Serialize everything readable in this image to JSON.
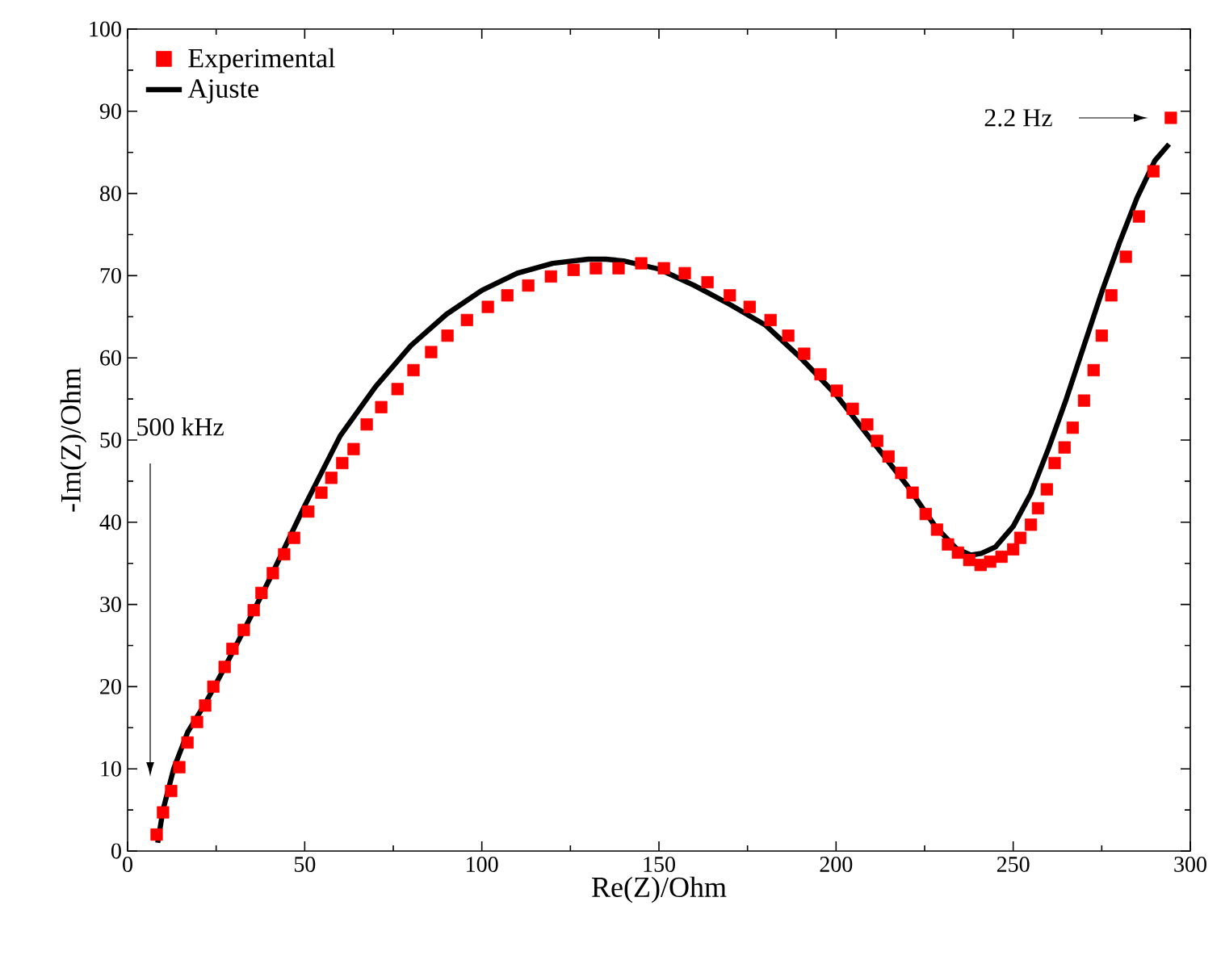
{
  "chart_data": {
    "type": "scatter",
    "xlabel": "Re(Z)/Ohm",
    "ylabel": "-Im(Z)/Ohm",
    "xlim": [
      0,
      300
    ],
    "ylim": [
      0,
      100
    ],
    "xticks": [
      0,
      50,
      100,
      150,
      200,
      250,
      300
    ],
    "yticks": [
      0,
      10,
      20,
      30,
      40,
      50,
      60,
      70,
      80,
      90,
      100
    ],
    "grid": false,
    "legend": "top left",
    "series": [
      {
        "name": "Experimental",
        "marker": "square",
        "color": "#ff0000",
        "x": [
          8.2,
          10,
          12.3,
          14.6,
          16.9,
          19.6,
          21.9,
          24.2,
          27.4,
          29.6,
          32.8,
          35.6,
          37.8,
          41,
          44.2,
          47,
          51,
          54.7,
          57.5,
          60.6,
          63.8,
          67.5,
          71.6,
          76.2,
          80.7,
          85.7,
          90.3,
          95.8,
          101.7,
          107.2,
          113.1,
          119.5,
          125.9,
          132.2,
          138.6,
          145,
          151.4,
          157.3,
          163.7,
          170,
          175.6,
          181.5,
          186.5,
          191,
          195.6,
          200.2,
          204.7,
          208.8,
          211.6,
          214.8,
          218.4,
          221.6,
          225.3,
          228.5,
          231.6,
          234.4,
          237.6,
          240.8,
          243.5,
          246.7,
          250,
          252,
          255,
          257,
          259.5,
          261.7,
          264.5,
          266.8,
          270,
          272.7,
          275,
          277.7,
          281.8,
          285.5,
          289.6,
          294.5
        ],
        "values": [
          2.0,
          4.7,
          7.3,
          10.2,
          13.2,
          15.7,
          17.7,
          20,
          22.4,
          24.6,
          26.9,
          29.3,
          31.4,
          33.8,
          36.1,
          38.1,
          41.3,
          43.6,
          45.4,
          47.2,
          48.9,
          51.9,
          54,
          56.2,
          58.5,
          60.7,
          62.7,
          64.6,
          66.2,
          67.6,
          68.8,
          69.9,
          70.7,
          70.9,
          70.9,
          71.5,
          70.9,
          70.3,
          69.2,
          67.6,
          66.2,
          64.6,
          62.7,
          60.5,
          58,
          56,
          53.8,
          51.9,
          49.9,
          48,
          46,
          43.6,
          41,
          39.1,
          37.3,
          36.3,
          35.4,
          34.8,
          35.2,
          35.8,
          36.7,
          38.1,
          39.7,
          41.7,
          44,
          47.2,
          49.1,
          51.5,
          54.8,
          58.5,
          62.7,
          67.6,
          72.3,
          77.2,
          82.7,
          89.2
        ]
      },
      {
        "name": "Ajuste",
        "type": "line",
        "line_style": "solid",
        "marker": "none",
        "color": "#000000",
        "x": [
          8.5,
          10,
          13,
          17,
          22,
          27,
          33,
          40,
          50,
          60,
          70,
          80,
          90,
          100,
          110,
          120,
          130,
          135,
          140,
          150,
          160,
          170,
          180,
          190,
          200,
          210,
          220,
          228,
          234,
          238,
          241,
          245,
          250,
          255,
          260,
          265,
          270,
          275,
          280,
          285,
          290,
          294
        ],
        "values": [
          1,
          5,
          10,
          14.5,
          18,
          22,
          27,
          33,
          42,
          50.5,
          56.5,
          61.5,
          65.3,
          68.2,
          70.3,
          71.5,
          72,
          72,
          71.8,
          70.8,
          68.8,
          66.5,
          64,
          60,
          55.5,
          50,
          44.5,
          39.5,
          36.8,
          36,
          36.2,
          37,
          39.5,
          43.5,
          49,
          55,
          61.5,
          68,
          74,
          79.5,
          84,
          86
        ]
      }
    ],
    "annotations": [
      "500 kHz",
      "2.2 Hz"
    ]
  }
}
